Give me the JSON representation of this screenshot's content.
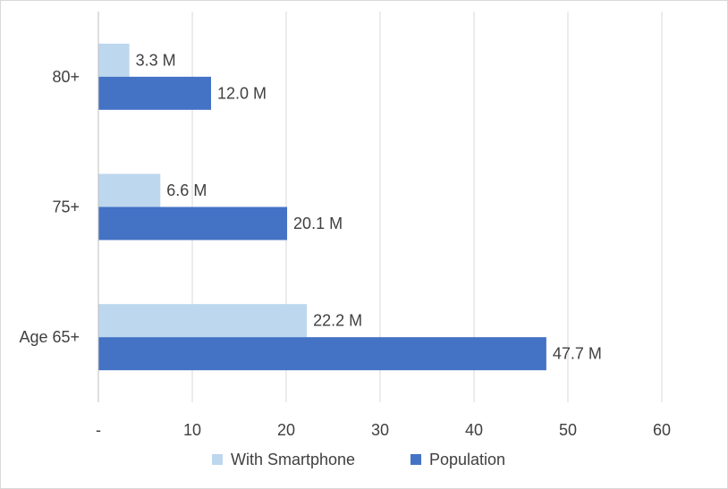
{
  "chart_data": {
    "type": "bar",
    "orientation": "horizontal",
    "categories": [
      "80+",
      "75+",
      "Age 65+"
    ],
    "series": [
      {
        "name": "With Smartphone",
        "values": [
          3.3,
          6.6,
          22.2
        ],
        "labels": [
          "3.3 M",
          "6.6 M",
          "22.2 M"
        ],
        "color": "#bdd7ee"
      },
      {
        "name": "Population",
        "values": [
          12.0,
          20.1,
          47.7
        ],
        "labels": [
          "12.0 M",
          "20.1 M",
          "47.7 M"
        ],
        "color": "#4472c4"
      }
    ],
    "x_ticks": [
      "-",
      "10",
      "20",
      "30",
      "40",
      "50",
      "60"
    ],
    "xlim": [
      0,
      60
    ],
    "grid": true,
    "legend_position": "bottom",
    "title": "",
    "xlabel": "",
    "ylabel": ""
  }
}
